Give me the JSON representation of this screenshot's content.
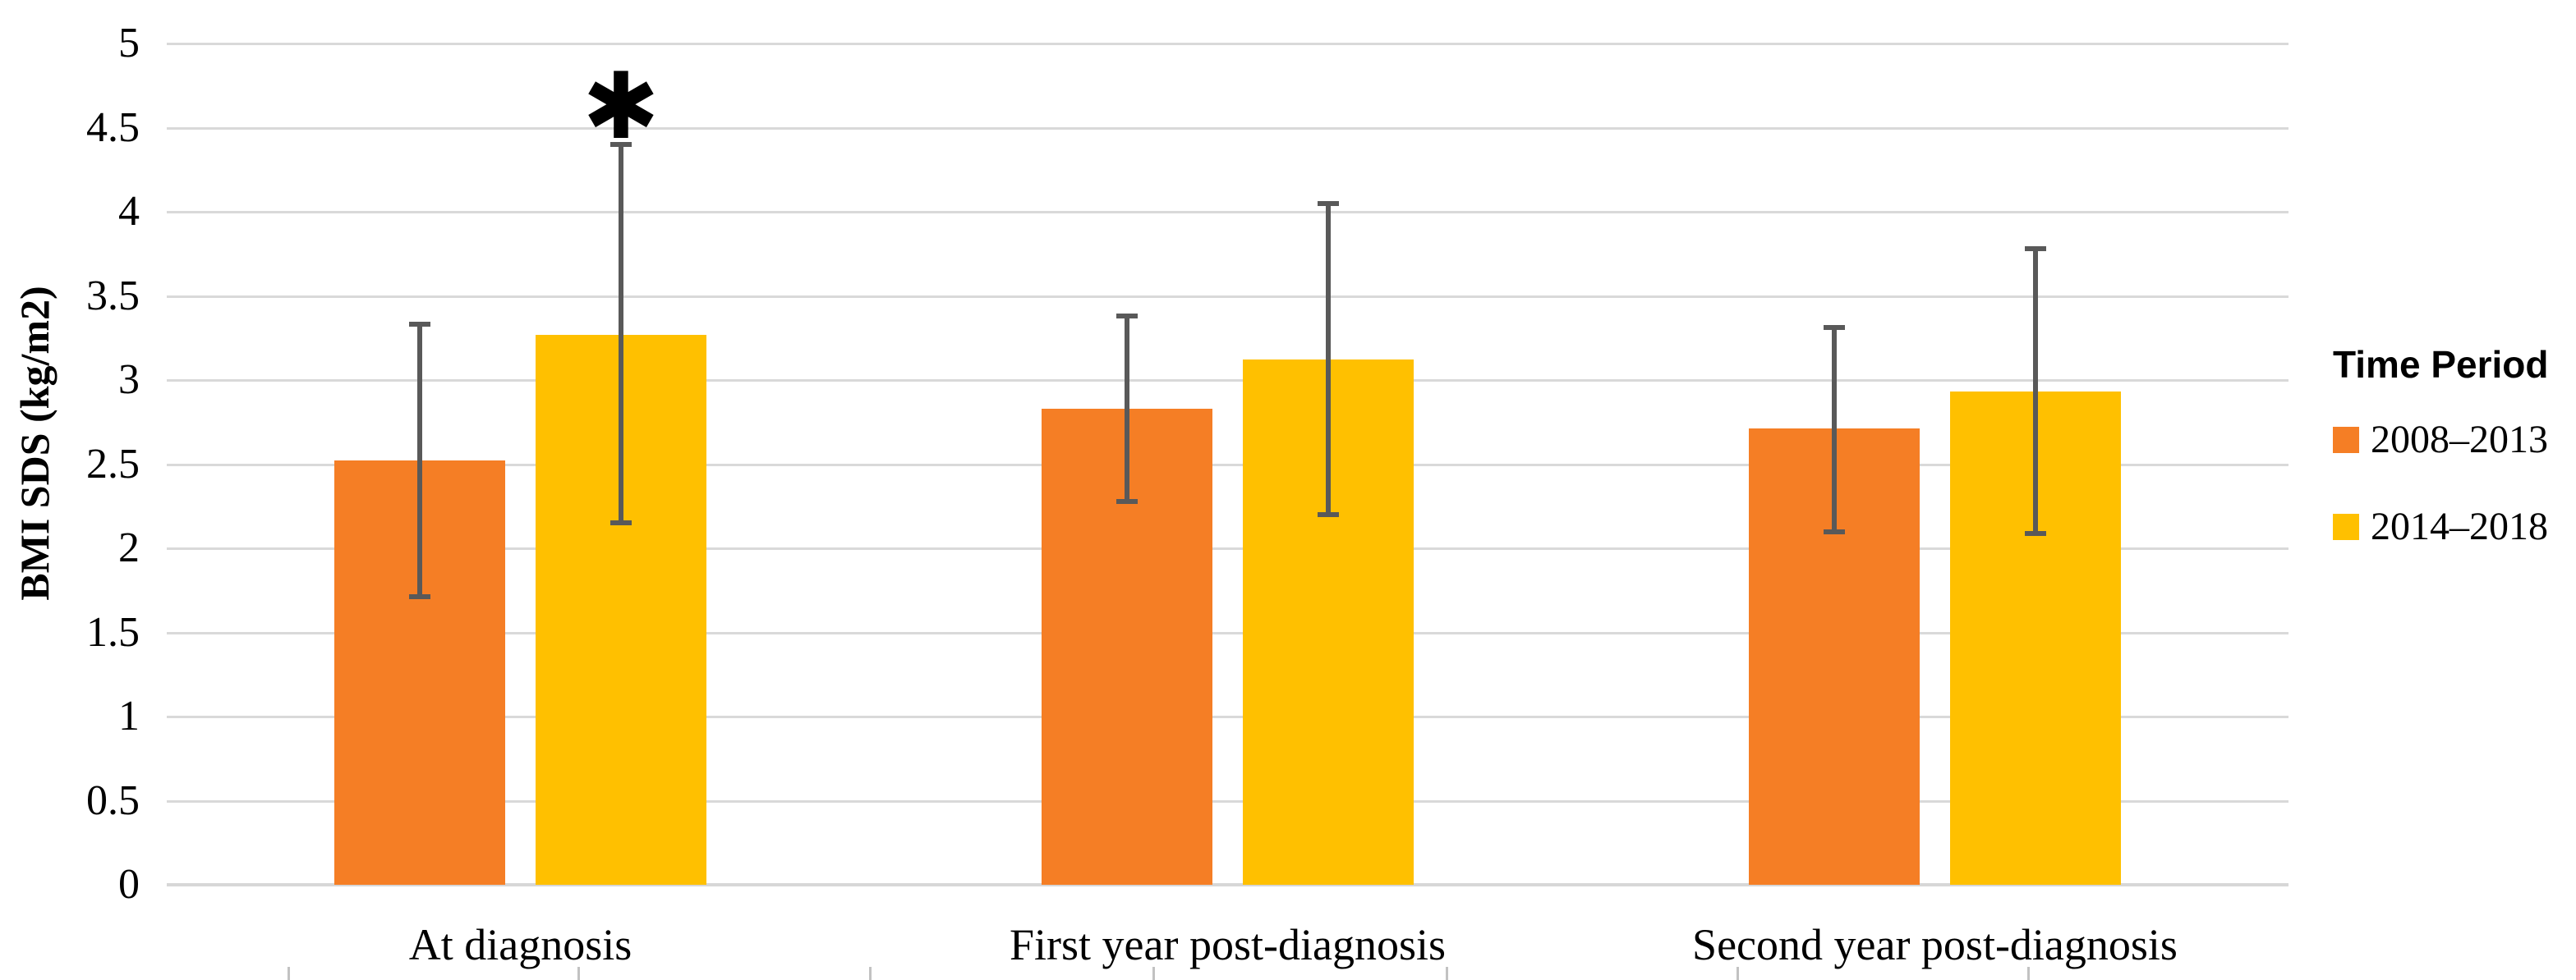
{
  "chart_data": {
    "type": "bar",
    "title": "",
    "xlabel": "",
    "ylabel": "BMI SDS (kg/m2)",
    "ylim": [
      0,
      5
    ],
    "yticks": [
      "0",
      "0.5",
      "1",
      "1.5",
      "2",
      "2.5",
      "3",
      "3.5",
      "4",
      "4.5",
      "5"
    ],
    "grid": true,
    "legend_position": "right",
    "legend_title": "Time Period",
    "categories": [
      "At diagnosis",
      "First year post-diagnosis",
      "Second year post-diagnosis"
    ],
    "series": [
      {
        "name": "2008–2013",
        "color": "#F57E25",
        "values": [
          2.52,
          2.83,
          2.71
        ],
        "error_low": [
          1.71,
          2.28,
          2.1
        ],
        "error_high": [
          3.33,
          3.38,
          3.31
        ]
      },
      {
        "name": "2014–2018",
        "color": "#FFC000",
        "values": [
          3.27,
          3.12,
          2.93
        ],
        "error_low": [
          2.15,
          2.2,
          2.09
        ],
        "error_high": [
          4.4,
          4.05,
          3.78
        ]
      }
    ],
    "annotations": [
      {
        "text": "*",
        "category_index": 0,
        "series_index": 1
      }
    ],
    "colors": {
      "gridline": "#d9d9d9",
      "error_bar": "#595959",
      "text": "#000000"
    }
  }
}
